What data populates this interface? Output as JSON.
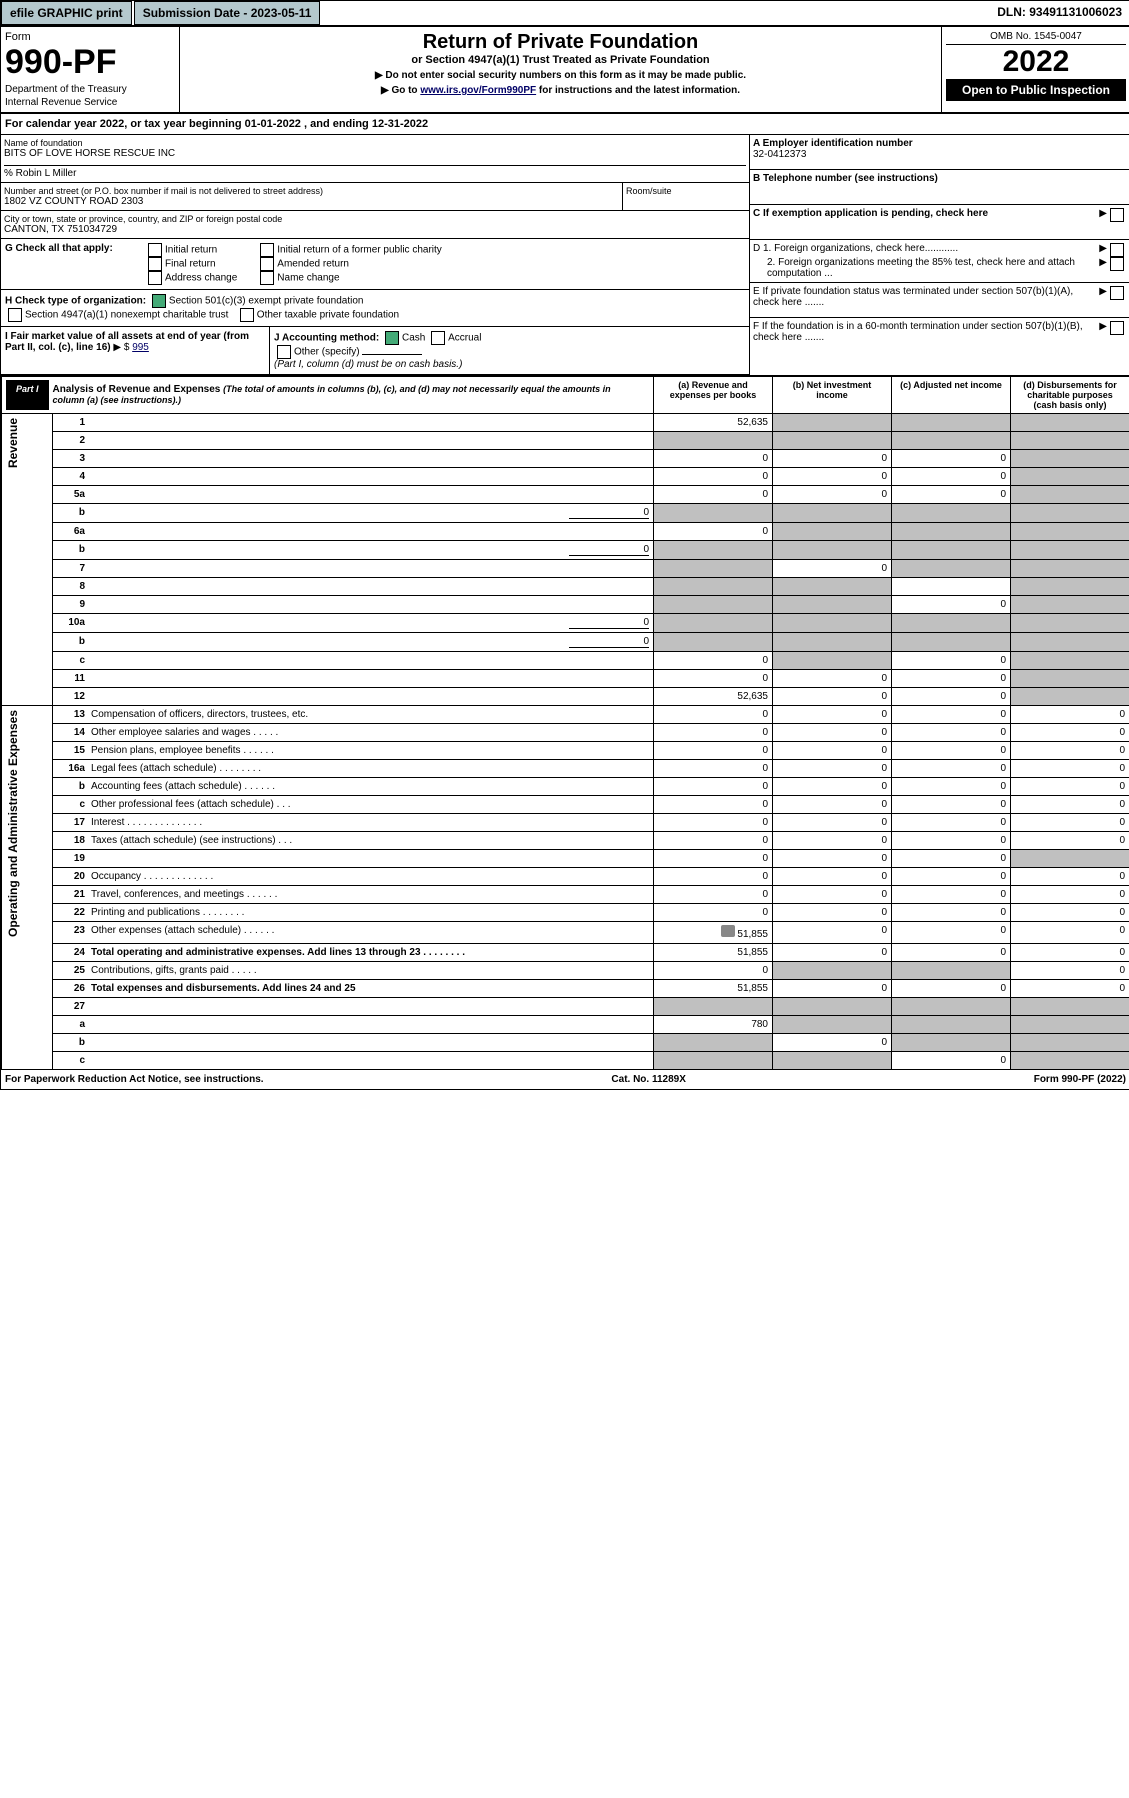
{
  "topbar": {
    "print": "efile GRAPHIC print",
    "submission": "Submission Date - 2023-05-11",
    "dln": "DLN: 93491131006023"
  },
  "header": {
    "form_label": "Form",
    "form_number": "990-PF",
    "dept1": "Department of the Treasury",
    "dept2": "Internal Revenue Service",
    "title": "Return of Private Foundation",
    "subtitle": "or Section 4947(a)(1) Trust Treated as Private Foundation",
    "note1": "▶ Do not enter social security numbers on this form as it may be made public.",
    "note2_pre": "▶ Go to ",
    "note2_link": "www.irs.gov/Form990PF",
    "note2_post": " for instructions and the latest information.",
    "omb": "OMB No. 1545-0047",
    "year": "2022",
    "open": "Open to Public Inspection"
  },
  "calendar": {
    "text_pre": "For calendar year 2022, or tax year beginning ",
    "begin": "01-01-2022",
    "mid": " , and ending ",
    "end": "12-31-2022"
  },
  "name_block": {
    "label": "Name of foundation",
    "name": "BITS OF LOVE HORSE RESCUE INC",
    "co": "% Robin L Miller",
    "addr_label": "Number and street (or P.O. box number if mail is not delivered to street address)",
    "addr": "1802 VZ COUNTY ROAD 2303",
    "room_label": "Room/suite",
    "city_label": "City or town, state or province, country, and ZIP or foreign postal code",
    "city": "CANTON, TX  751034729"
  },
  "right_block": {
    "a_label": "A Employer identification number",
    "a_val": "32-0412373",
    "b_label": "B Telephone number (see instructions)",
    "c_label": "C If exemption application is pending, check here",
    "d1": "D 1. Foreign organizations, check here............",
    "d2": "2. Foreign organizations meeting the 85% test, check here and attach computation ...",
    "e": "E  If private foundation status was terminated under section 507(b)(1)(A), check here .......",
    "f": "F  If the foundation is in a 60-month termination under section 507(b)(1)(B), check here .......",
    "arrow": "▶"
  },
  "g": {
    "label": "G Check all that apply:",
    "opts": [
      "Initial return",
      "Final return",
      "Address change",
      "Initial return of a former public charity",
      "Amended return",
      "Name change"
    ]
  },
  "h": {
    "label": "H Check type of organization:",
    "opt1": "Section 501(c)(3) exempt private foundation",
    "opt2": "Section 4947(a)(1) nonexempt charitable trust",
    "opt3": "Other taxable private foundation"
  },
  "i": {
    "label": "I Fair market value of all assets at end of year (from Part II, col. (c), line 16)",
    "prefix": "▶ $",
    "value": "995"
  },
  "j": {
    "label": "J Accounting method:",
    "cash": "Cash",
    "accrual": "Accrual",
    "other": "Other (specify)",
    "note": "(Part I, column (d) must be on cash basis.)"
  },
  "partI": {
    "label": "Part I",
    "title": "Analysis of Revenue and Expenses",
    "desc": "(The total of amounts in columns (b), (c), and (d) may not necessarily equal the amounts in column (a) (see instructions).)",
    "col_a": "(a)  Revenue and expenses per books",
    "col_b": "(b)  Net investment income",
    "col_c": "(c)  Adjusted net income",
    "col_d": "(d)  Disbursements for charitable purposes (cash basis only)"
  },
  "sections": {
    "revenue": "Revenue",
    "expenses": "Operating and Administrative Expenses"
  },
  "rows": [
    {
      "n": "1",
      "d": "",
      "a": "52,635",
      "b": "",
      "c": "",
      "shadeB": true,
      "shadeC": true,
      "shadeD": true
    },
    {
      "n": "2",
      "d": "",
      "a": "",
      "b": "",
      "c": "",
      "shadeA": true,
      "shadeB": true,
      "shadeC": true,
      "shadeD": true
    },
    {
      "n": "3",
      "d": "",
      "a": "0",
      "b": "0",
      "c": "0",
      "shadeD": true
    },
    {
      "n": "4",
      "d": "",
      "a": "0",
      "b": "0",
      "c": "0",
      "shadeD": true
    },
    {
      "n": "5a",
      "d": "",
      "a": "0",
      "b": "0",
      "c": "0",
      "shadeD": true
    },
    {
      "n": "b",
      "d": "",
      "inline": "0",
      "a": "",
      "b": "",
      "c": "",
      "shadeA": true,
      "shadeB": true,
      "shadeC": true,
      "shadeD": true
    },
    {
      "n": "6a",
      "d": "",
      "a": "0",
      "b": "",
      "c": "",
      "shadeB": true,
      "shadeC": true,
      "shadeD": true
    },
    {
      "n": "b",
      "d": "",
      "inline": "0",
      "a": "",
      "b": "",
      "c": "",
      "shadeA": true,
      "shadeB": true,
      "shadeC": true,
      "shadeD": true
    },
    {
      "n": "7",
      "d": "",
      "a": "",
      "b": "0",
      "c": "",
      "shadeA": true,
      "shadeC": true,
      "shadeD": true
    },
    {
      "n": "8",
      "d": "",
      "a": "",
      "b": "",
      "c": "",
      "shadeA": true,
      "shadeB": true,
      "shadeD": true
    },
    {
      "n": "9",
      "d": "",
      "a": "",
      "b": "",
      "c": "0",
      "shadeA": true,
      "shadeB": true,
      "shadeD": true
    },
    {
      "n": "10a",
      "d": "",
      "inline": "0",
      "a": "",
      "b": "",
      "c": "",
      "shadeA": true,
      "shadeB": true,
      "shadeC": true,
      "shadeD": true
    },
    {
      "n": "b",
      "d": "",
      "inline": "0",
      "a": "",
      "b": "",
      "c": "",
      "shadeA": true,
      "shadeB": true,
      "shadeC": true,
      "shadeD": true
    },
    {
      "n": "c",
      "d": "",
      "a": "0",
      "b": "",
      "c": "0",
      "shadeB": true,
      "shadeD": true
    },
    {
      "n": "11",
      "d": "",
      "a": "0",
      "b": "0",
      "c": "0",
      "shadeD": true
    },
    {
      "n": "12",
      "d": "",
      "bold": true,
      "a": "52,635",
      "b": "0",
      "c": "0",
      "shadeD": true
    },
    {
      "n": "13",
      "d": "Compensation of officers, directors, trustees, etc.",
      "a": "0",
      "b": "0",
      "c": "0",
      "dv": "0"
    },
    {
      "n": "14",
      "d": "Other employee salaries and wages  .  .  .  .  .",
      "a": "0",
      "b": "0",
      "c": "0",
      "dv": "0"
    },
    {
      "n": "15",
      "d": "Pension plans, employee benefits  .  .  .  .  .  .",
      "a": "0",
      "b": "0",
      "c": "0",
      "dv": "0"
    },
    {
      "n": "16a",
      "d": "Legal fees (attach schedule)  .  .  .  .  .  .  .  .",
      "a": "0",
      "b": "0",
      "c": "0",
      "dv": "0"
    },
    {
      "n": "b",
      "d": "Accounting fees (attach schedule)  .  .  .  .  .  .",
      "a": "0",
      "b": "0",
      "c": "0",
      "dv": "0"
    },
    {
      "n": "c",
      "d": "Other professional fees (attach schedule)  .  .  .",
      "a": "0",
      "b": "0",
      "c": "0",
      "dv": "0"
    },
    {
      "n": "17",
      "d": "Interest  .  .  .  .  .  .  .  .  .  .  .  .  .  .",
      "a": "0",
      "b": "0",
      "c": "0",
      "dv": "0"
    },
    {
      "n": "18",
      "d": "Taxes (attach schedule) (see instructions)  .  .  .",
      "a": "0",
      "b": "0",
      "c": "0",
      "dv": "0"
    },
    {
      "n": "19",
      "d": "",
      "a": "0",
      "b": "0",
      "c": "0",
      "shadeD": true
    },
    {
      "n": "20",
      "d": "Occupancy  .  .  .  .  .  .  .  .  .  .  .  .  .",
      "a": "0",
      "b": "0",
      "c": "0",
      "dv": "0"
    },
    {
      "n": "21",
      "d": "Travel, conferences, and meetings  .  .  .  .  .  .",
      "a": "0",
      "b": "0",
      "c": "0",
      "dv": "0"
    },
    {
      "n": "22",
      "d": "Printing and publications  .  .  .  .  .  .  .  .",
      "a": "0",
      "b": "0",
      "c": "0",
      "dv": "0"
    },
    {
      "n": "23",
      "d": "Other expenses (attach schedule)  .  .  .  .  .  .",
      "icon": true,
      "a": "51,855",
      "b": "0",
      "c": "0",
      "dv": "0"
    },
    {
      "n": "24",
      "d": "Total operating and administrative expenses. Add lines 13 through 23  .  .  .  .  .  .  .  .",
      "bold": true,
      "a": "51,855",
      "b": "0",
      "c": "0",
      "dv": "0"
    },
    {
      "n": "25",
      "d": "Contributions, gifts, grants paid  .  .  .  .  .",
      "a": "0",
      "b": "",
      "c": "",
      "dv": "0",
      "shadeB": true,
      "shadeC": true
    },
    {
      "n": "26",
      "d": "Total expenses and disbursements. Add lines 24 and 25",
      "bold": true,
      "a": "51,855",
      "b": "0",
      "c": "0",
      "dv": "0"
    },
    {
      "n": "27",
      "d": "",
      "a": "",
      "b": "",
      "c": "",
      "shadeA": true,
      "shadeB": true,
      "shadeC": true,
      "shadeD": true
    },
    {
      "n": "a",
      "d": "",
      "bold": true,
      "a": "780",
      "b": "",
      "c": "",
      "shadeB": true,
      "shadeC": true,
      "shadeD": true
    },
    {
      "n": "b",
      "d": "",
      "bold": true,
      "a": "",
      "b": "0",
      "c": "",
      "shadeA": true,
      "shadeC": true,
      "shadeD": true
    },
    {
      "n": "c",
      "d": "",
      "bold": true,
      "a": "",
      "b": "",
      "c": "0",
      "shadeA": true,
      "shadeB": true,
      "shadeD": true
    }
  ],
  "footer": {
    "left": "For Paperwork Reduction Act Notice, see instructions.",
    "mid": "Cat. No. 11289X",
    "right": "Form 990-PF (2022)"
  }
}
